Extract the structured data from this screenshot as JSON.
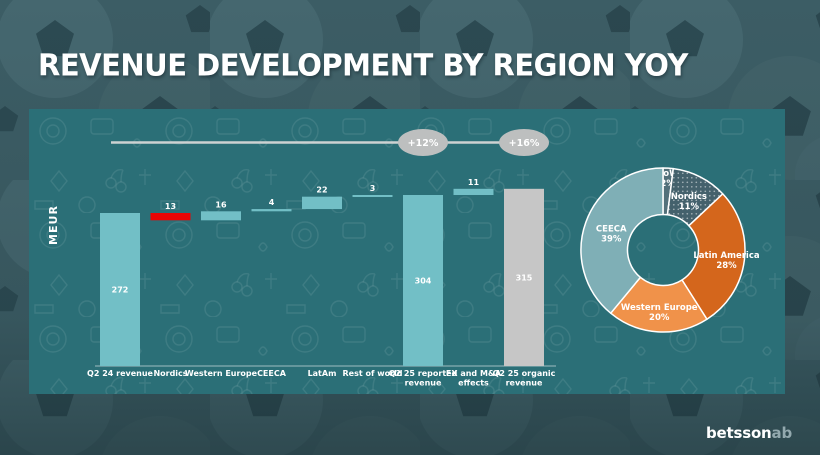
{
  "title": "REVENUE DEVELOPMENT BY REGION YOY",
  "logo": {
    "primary": "betsson",
    "secondary": "ab"
  },
  "colors": {
    "slide_background": "#3a5b63",
    "panel_background": "#2b6f77",
    "bar_teal": "#72bfc6",
    "bar_red": "#e90505",
    "bar_gray": "#c6c6c6",
    "oval_gray": "#bdbfbf",
    "connector_line": "#cdd2d2",
    "text_white": "#ffffff",
    "logo_ab": "#93a9ae"
  },
  "chart_data": [
    {
      "type": "bar",
      "subtype": "waterfall",
      "title": "",
      "unit": "MEUR",
      "categories": [
        "Q2 24 revenue",
        "Nordics",
        "Western Europe",
        "CEECA",
        "LatAm",
        "Rest of world",
        "Q2 25 reported revenue",
        "FX and M&A effects",
        "Q2 25 organic revenue"
      ],
      "categories_lines": [
        [
          "Q2 24 revenue"
        ],
        [
          "Nordics"
        ],
        [
          "Western Europe"
        ],
        [
          "CEECA"
        ],
        [
          "LatAm"
        ],
        [
          "Rest of world"
        ],
        [
          "Q2 25 reported",
          "revenue"
        ],
        [
          "FX and M&A",
          "effects"
        ],
        [
          "Q2 25 organic",
          "revenue"
        ]
      ],
      "values": [
        272,
        -13,
        16,
        4,
        22,
        3,
        304,
        11,
        315
      ],
      "display_values": [
        "272",
        "13",
        "16",
        "4",
        "22",
        "3",
        "304",
        "11",
        "315"
      ],
      "kinds": [
        "total",
        "delta",
        "delta",
        "delta",
        "delta",
        "delta",
        "total",
        "delta",
        "total"
      ],
      "bar_colors": [
        "#72bfc6",
        "#e90505",
        "#72bfc6",
        "#72bfc6",
        "#72bfc6",
        "#72bfc6",
        "#72bfc6",
        "#72bfc6",
        "#c6c6c6"
      ],
      "annotations": [
        {
          "text": "+12%",
          "above_category": "Q2 25 reported revenue"
        },
        {
          "text": "+16%",
          "above_category": "Q2 25 organic revenue"
        }
      ],
      "ylim": [
        0,
        340
      ],
      "grid": false
    },
    {
      "type": "pie",
      "subtype": "donut",
      "title": "",
      "categories": [
        "RoW",
        "Nordics",
        "Latin America",
        "Western Europe",
        "CEECA"
      ],
      "values": [
        2,
        11,
        28,
        20,
        39
      ],
      "labels_lines": [
        [
          "RoW",
          "2%"
        ],
        [
          "Nordics",
          "11%"
        ],
        [
          "Latin America",
          "28%"
        ],
        [
          "Western Europe",
          "20%"
        ],
        [
          "CEECA",
          "39%"
        ]
      ],
      "colors": [
        "#53707a",
        "#44616c",
        "#d4661c",
        "#f0924a",
        "#7fafb6"
      ],
      "textures": [
        null,
        "dots",
        null,
        null,
        null
      ],
      "legend_position": "on-slices",
      "start_angle_deg": 0,
      "direction": "clockwise"
    }
  ]
}
